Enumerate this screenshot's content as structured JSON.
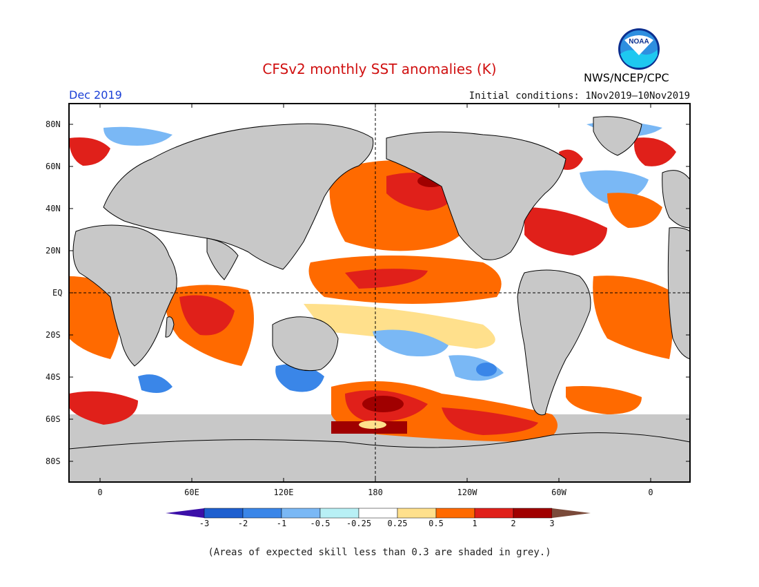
{
  "header": {
    "title": "CFSv2 monthly SST anomalies (K)",
    "month": "Dec 2019",
    "initial_conditions": "Initial conditions: 1Nov2019—10Nov2019",
    "agency": "NWS/NCEP/CPC",
    "logo_text": "NOAA"
  },
  "map": {
    "projection": "cylindrical-equidistant",
    "land_color": "#c8c8c8",
    "low_skill_color": "#c8c8c8",
    "lat_labels": [
      "80N",
      "60N",
      "40N",
      "20N",
      "EQ",
      "20S",
      "40S",
      "60S",
      "80S"
    ],
    "lon_labels": [
      "0",
      "60E",
      "120E",
      "180",
      "120W",
      "60W",
      "0"
    ],
    "reference_lines": [
      "equator",
      "dateline"
    ],
    "lat_range": [
      -90,
      90
    ],
    "lon_range": [
      -30,
      390
    ]
  },
  "colorbar": {
    "labels": [
      "-3",
      "-2",
      "-1",
      "-0.5",
      "-0.25",
      "0.25",
      "0.5",
      "1",
      "2",
      "3"
    ],
    "colors": [
      "#3b0fa8",
      "#1e5fcf",
      "#3a86e8",
      "#7ab8f5",
      "#b8f0f5",
      "#ffffff",
      "#ffe08c",
      "#ff6a00",
      "#e0201a",
      "#a00000",
      "#7a4a3a"
    ]
  },
  "footnote": "(Areas of expected skill less than 0.3 are shaded in grey.)"
}
